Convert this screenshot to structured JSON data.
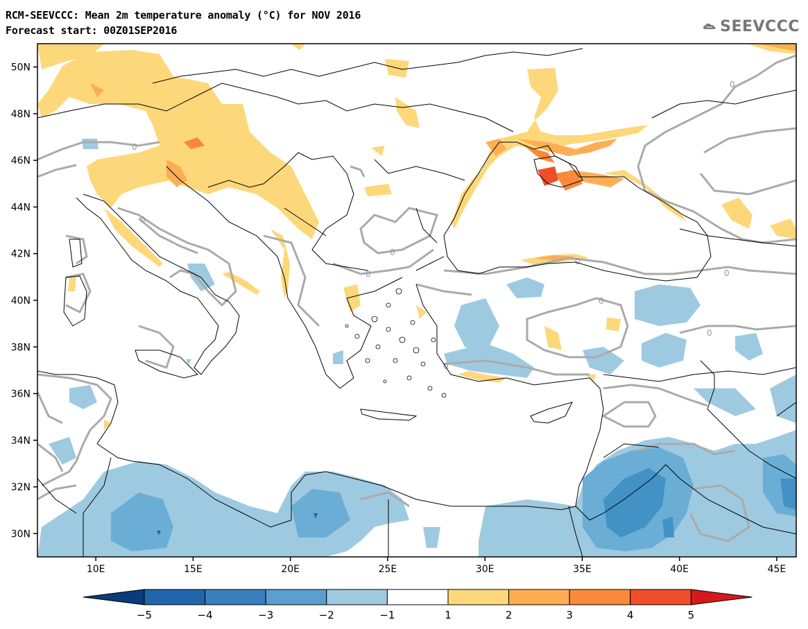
{
  "header": {
    "title_line1": "RCM-SEEVCCC: Mean 2m temperature anomaly (°C) for NOV 2016",
    "title_line2": "Forecast start: 00Z01SEP2016",
    "logo_text": "SEEVCCC"
  },
  "map": {
    "variable": "Mean 2m temperature anomaly (°C)",
    "lon_labels": [
      "10E",
      "15E",
      "20E",
      "25E",
      "30E",
      "35E",
      "40E",
      "45E"
    ],
    "lat_labels": [
      "50N",
      "48N",
      "46N",
      "44N",
      "42N",
      "40N",
      "38N",
      "36N",
      "34N",
      "32N",
      "30N"
    ],
    "lon_range": [
      7,
      46
    ],
    "lat_range": [
      29,
      51
    ],
    "contour_label": "0",
    "colors": {
      "warm_1_2": "#fdd87a",
      "warm_2_3": "#fdae53",
      "warm_3_4": "#f98a3b",
      "warm_4_5": "#f04e2a",
      "cool_m2_m1": "#9ecae1",
      "cool_m3_m2": "#6aaed6",
      "cool_m4_m3": "#4292c6",
      "zero_contour": "#aaaaaa"
    }
  },
  "colorbar": {
    "ticks": [
      "−5",
      "−4",
      "−3",
      "−2",
      "−1",
      "1",
      "2",
      "3",
      "4",
      "5"
    ],
    "colors": [
      "#2166ac",
      "#3a7fbd",
      "#5a9fd0",
      "#9ecae1",
      "#ffffff",
      "#fdd87a",
      "#fdae53",
      "#f98a3b",
      "#f04e2a"
    ],
    "end_low": "#0a3b7a",
    "end_high": "#d7191c"
  }
}
